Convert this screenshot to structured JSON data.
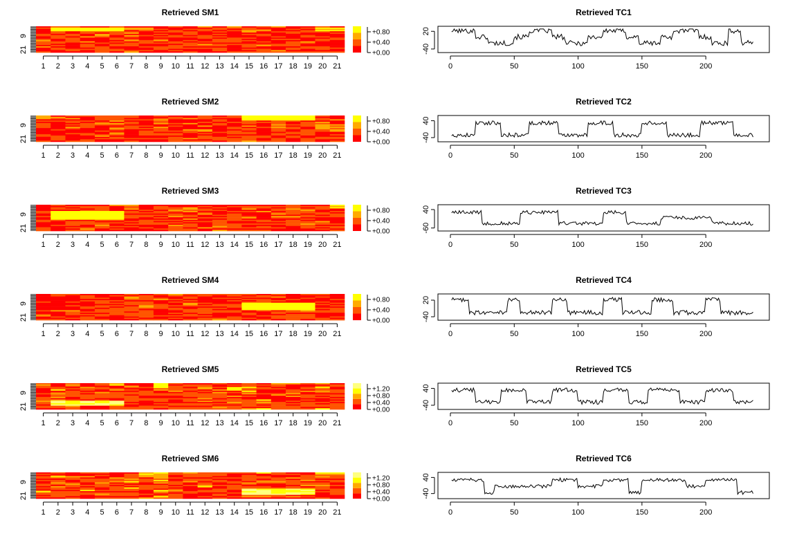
{
  "colors": {
    "heat_levels": [
      "#ff0000",
      "#ff5500",
      "#ffaa00",
      "#ffff00",
      "#ffff80"
    ],
    "line": "#000000",
    "axis": "#000000"
  },
  "chart_data": [
    {
      "type": "heatmap",
      "title": "Retrieved SM1",
      "xticks": [
        "1",
        "2",
        "3",
        "4",
        "5",
        "6",
        "7",
        "8",
        "9",
        "10",
        "11",
        "12",
        "13",
        "14",
        "15",
        "16",
        "17",
        "18",
        "19",
        "20",
        "21"
      ],
      "yticks": [
        "9",
        "21"
      ],
      "legend_ticks": [
        "+0.80",
        "+0.40",
        "+0.00"
      ],
      "legend_levels": 4,
      "rows": 21,
      "cols": 21,
      "seed": 11,
      "hot": [
        {
          "cols": [
            2,
            6
          ],
          "rows": [
            2,
            4
          ],
          "value": 0.9
        },
        {
          "cols": [
            7,
            8
          ],
          "rows": [
            2,
            3
          ],
          "value": 0.75
        },
        {
          "cols": [
            20,
            21
          ],
          "rows": [
            2,
            4
          ],
          "value": 0.8
        },
        {
          "cols": [
            12,
            13
          ],
          "rows": [
            15,
            16
          ],
          "value": 0.55
        }
      ]
    },
    {
      "type": "heatmap",
      "title": "Retrieved SM2",
      "xticks": [
        "1",
        "2",
        "3",
        "4",
        "5",
        "6",
        "7",
        "8",
        "9",
        "10",
        "11",
        "12",
        "13",
        "14",
        "15",
        "16",
        "17",
        "18",
        "19",
        "20",
        "21"
      ],
      "yticks": [
        "9",
        "21"
      ],
      "legend_ticks": [
        "+0.80",
        "+0.40",
        "+0.00"
      ],
      "legend_levels": 4,
      "rows": 21,
      "cols": 21,
      "seed": 23,
      "hot": [
        {
          "cols": [
            15,
            19
          ],
          "rows": [
            1,
            4
          ],
          "value": 0.9
        },
        {
          "cols": [
            20,
            21
          ],
          "rows": [
            8,
            13
          ],
          "value": 0.6
        },
        {
          "cols": [
            1,
            1
          ],
          "rows": [
            1,
            3
          ],
          "value": 0.6
        }
      ]
    },
    {
      "type": "heatmap",
      "title": "Retrieved SM3",
      "xticks": [
        "1",
        "2",
        "3",
        "4",
        "5",
        "6",
        "7",
        "8",
        "9",
        "10",
        "11",
        "12",
        "13",
        "14",
        "15",
        "16",
        "17",
        "18",
        "19",
        "20",
        "21"
      ],
      "yticks": [
        "9",
        "21"
      ],
      "legend_ticks": [
        "+0.80",
        "+0.40",
        "+0.00"
      ],
      "legend_levels": 4,
      "rows": 21,
      "cols": 21,
      "seed": 37,
      "hot": [
        {
          "cols": [
            2,
            6
          ],
          "rows": [
            6,
            12
          ],
          "value": 0.9
        },
        {
          "cols": [
            21,
            21
          ],
          "rows": [
            1,
            3
          ],
          "value": 0.8
        },
        {
          "cols": [
            10,
            11
          ],
          "rows": [
            4,
            6
          ],
          "value": 0.6
        }
      ]
    },
    {
      "type": "heatmap",
      "title": "Retrieved SM4",
      "xticks": [
        "1",
        "2",
        "3",
        "4",
        "5",
        "6",
        "7",
        "8",
        "9",
        "10",
        "11",
        "12",
        "13",
        "14",
        "15",
        "16",
        "17",
        "18",
        "19",
        "20",
        "21"
      ],
      "yticks": [
        "9",
        "21"
      ],
      "legend_ticks": [
        "+0.80",
        "+0.40",
        "+0.00"
      ],
      "legend_levels": 4,
      "rows": 21,
      "cols": 21,
      "seed": 41,
      "hot": [
        {
          "cols": [
            15,
            19
          ],
          "rows": [
            8,
            13
          ],
          "value": 0.9
        },
        {
          "cols": [
            7,
            8
          ],
          "rows": [
            3,
            5
          ],
          "value": 0.55
        }
      ]
    },
    {
      "type": "heatmap",
      "title": "Retrieved SM5",
      "xticks": [
        "1",
        "2",
        "3",
        "4",
        "5",
        "6",
        "7",
        "8",
        "9",
        "10",
        "11",
        "12",
        "13",
        "14",
        "15",
        "16",
        "17",
        "18",
        "19",
        "20",
        "21"
      ],
      "yticks": [
        "9",
        "21"
      ],
      "legend_ticks": [
        "+1.20",
        "+0.80",
        "+0.40",
        "+0.00"
      ],
      "legend_levels": 5,
      "rows": 21,
      "cols": 21,
      "seed": 53,
      "hot": [
        {
          "cols": [
            2,
            6
          ],
          "rows": [
            15,
            18
          ],
          "value": 0.9
        },
        {
          "cols": [
            9,
            9
          ],
          "rows": [
            1,
            4
          ],
          "value": 0.75
        },
        {
          "cols": [
            14,
            14
          ],
          "rows": [
            4,
            6
          ],
          "value": 0.7
        }
      ]
    },
    {
      "type": "heatmap",
      "title": "Retrieved SM6",
      "xticks": [
        "1",
        "2",
        "3",
        "4",
        "5",
        "6",
        "7",
        "8",
        "9",
        "10",
        "11",
        "12",
        "13",
        "14",
        "15",
        "16",
        "17",
        "18",
        "19",
        "20",
        "21"
      ],
      "yticks": [
        "9",
        "21"
      ],
      "legend_ticks": [
        "+1.20",
        "+0.80",
        "+0.40",
        "+0.00"
      ],
      "legend_levels": 5,
      "rows": 21,
      "cols": 21,
      "seed": 67,
      "hot": [
        {
          "cols": [
            15,
            19
          ],
          "rows": [
            14,
            18
          ],
          "value": 0.9
        },
        {
          "cols": [
            8,
            9
          ],
          "rows": [
            1,
            4
          ],
          "value": 0.65
        },
        {
          "cols": [
            20,
            21
          ],
          "rows": [
            1,
            2
          ],
          "value": 0.7
        }
      ]
    },
    {
      "type": "line",
      "title": "Retrieved TC1",
      "xticks": [
        0,
        50,
        100,
        150,
        200
      ],
      "yticks": [
        20,
        -40
      ],
      "xlim": [
        0,
        240
      ],
      "ylim": [
        -45,
        30
      ],
      "seed": 101,
      "high": 22,
      "low": -20,
      "noise": 9,
      "segments": [
        [
          0,
          20,
          1
        ],
        [
          20,
          30,
          0
        ],
        [
          30,
          50,
          -1
        ],
        [
          50,
          62,
          0
        ],
        [
          62,
          80,
          1
        ],
        [
          80,
          90,
          0
        ],
        [
          90,
          108,
          -1
        ],
        [
          108,
          120,
          0
        ],
        [
          120,
          138,
          1
        ],
        [
          138,
          148,
          0
        ],
        [
          148,
          165,
          -1
        ],
        [
          165,
          175,
          0
        ],
        [
          175,
          195,
          1
        ],
        [
          195,
          205,
          0
        ],
        [
          205,
          218,
          -1
        ],
        [
          218,
          228,
          1
        ],
        [
          228,
          240,
          -1
        ]
      ]
    },
    {
      "type": "line",
      "title": "Retrieved TC2",
      "xticks": [
        0,
        50,
        100,
        150,
        200
      ],
      "yticks": [
        40,
        -40
      ],
      "xlim": [
        0,
        240
      ],
      "ylim": [
        -50,
        55
      ],
      "seed": 202,
      "high": 30,
      "low": -28,
      "noise": 10,
      "segments": [
        [
          0,
          20,
          -1
        ],
        [
          20,
          40,
          1
        ],
        [
          40,
          62,
          -1
        ],
        [
          62,
          85,
          1
        ],
        [
          85,
          108,
          -1
        ],
        [
          108,
          128,
          1
        ],
        [
          128,
          150,
          -1
        ],
        [
          150,
          170,
          1
        ],
        [
          170,
          196,
          -1
        ],
        [
          196,
          222,
          1
        ],
        [
          222,
          240,
          -1
        ]
      ]
    },
    {
      "type": "line",
      "title": "Retrieved TC3",
      "xticks": [
        0,
        50,
        100,
        150,
        200
      ],
      "yticks": [
        40,
        -60
      ],
      "xlim": [
        0,
        240
      ],
      "ylim": [
        -65,
        55
      ],
      "seed": 303,
      "high": 25,
      "low": -35,
      "noise": 10,
      "segments": [
        [
          0,
          25,
          1
        ],
        [
          25,
          55,
          -1
        ],
        [
          55,
          85,
          1
        ],
        [
          85,
          120,
          -1
        ],
        [
          120,
          138,
          1
        ],
        [
          138,
          165,
          -1
        ],
        [
          165,
          205,
          0
        ],
        [
          205,
          240,
          -1
        ]
      ]
    },
    {
      "type": "line",
      "title": "Retrieved TC4",
      "xticks": [
        0,
        50,
        100,
        150,
        200
      ],
      "yticks": [
        20,
        -40
      ],
      "xlim": [
        0,
        240
      ],
      "ylim": [
        -45,
        35
      ],
      "seed": 404,
      "high": 22,
      "low": -25,
      "noise": 8,
      "segments": [
        [
          0,
          15,
          1
        ],
        [
          15,
          45,
          -1
        ],
        [
          45,
          55,
          1
        ],
        [
          55,
          80,
          -1
        ],
        [
          80,
          92,
          1
        ],
        [
          92,
          120,
          -1
        ],
        [
          120,
          135,
          1
        ],
        [
          135,
          158,
          -1
        ],
        [
          158,
          175,
          1
        ],
        [
          175,
          200,
          -1
        ],
        [
          200,
          212,
          1
        ],
        [
          212,
          240,
          -1
        ]
      ]
    },
    {
      "type": "line",
      "title": "Retrieved TC5",
      "xticks": [
        0,
        50,
        100,
        150,
        200
      ],
      "yticks": [
        40,
        -40
      ],
      "xlim": [
        0,
        240
      ],
      "ylim": [
        -50,
        55
      ],
      "seed": 505,
      "high": 32,
      "low": -25,
      "noise": 10,
      "segments": [
        [
          0,
          20,
          1
        ],
        [
          20,
          40,
          -1
        ],
        [
          40,
          60,
          1
        ],
        [
          60,
          80,
          -1
        ],
        [
          80,
          100,
          1
        ],
        [
          100,
          120,
          -1
        ],
        [
          120,
          140,
          1
        ],
        [
          140,
          155,
          -1
        ],
        [
          155,
          180,
          1
        ],
        [
          180,
          200,
          -1
        ],
        [
          200,
          222,
          1
        ],
        [
          222,
          240,
          -1
        ]
      ]
    },
    {
      "type": "line",
      "title": "Retrieved TC6",
      "xticks": [
        0,
        50,
        100,
        150,
        200
      ],
      "yticks": [
        40,
        -40
      ],
      "xlim": [
        0,
        240
      ],
      "ylim": [
        -55,
        55
      ],
      "seed": 606,
      "high": 28,
      "low": -35,
      "noise": 9,
      "segments": [
        [
          0,
          27,
          1
        ],
        [
          27,
          35,
          -1
        ],
        [
          35,
          80,
          0
        ],
        [
          80,
          100,
          1
        ],
        [
          100,
          120,
          0
        ],
        [
          120,
          140,
          1
        ],
        [
          140,
          150,
          -1
        ],
        [
          150,
          185,
          1
        ],
        [
          185,
          200,
          0
        ],
        [
          200,
          225,
          1
        ],
        [
          225,
          240,
          -1
        ]
      ]
    }
  ]
}
